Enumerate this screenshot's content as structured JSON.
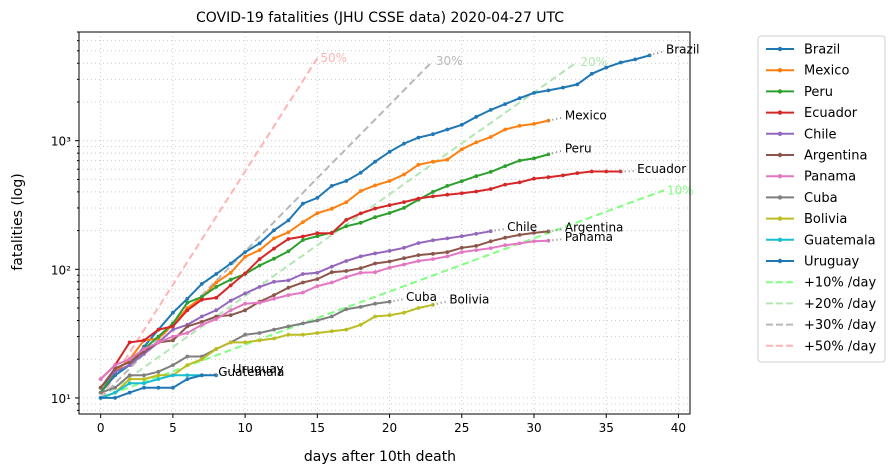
{
  "chart_data": {
    "type": "line",
    "title": "COVID-19 fatalities (JHU CSSE data) 2020-04-27 UTC",
    "xlabel": "days after 10th death",
    "ylabel": "fatalities (log)",
    "xlim": [
      -1.5,
      40.8
    ],
    "ylim": [
      7.5,
      7000
    ],
    "yscale": "log",
    "grid": true,
    "legend_position": "outside-right",
    "x_ticks": [
      0,
      5,
      10,
      15,
      20,
      25,
      30,
      35,
      40
    ],
    "x_tick_labels": [
      "0",
      "5",
      "10",
      "15",
      "20",
      "25",
      "30",
      "35",
      "40"
    ],
    "y_ticks": [
      10,
      100,
      1000
    ],
    "y_tick_labels": [
      "10¹",
      "10²",
      "10³"
    ],
    "series": [
      {
        "name": "Brazil",
        "color": "#1f77b4",
        "label": "Brazil",
        "x": [
          0,
          1,
          2,
          3,
          4,
          5,
          6,
          7,
          8,
          9,
          10,
          11,
          12,
          13,
          14,
          15,
          16,
          17,
          18,
          19,
          20,
          21,
          22,
          23,
          24,
          25,
          26,
          27,
          28,
          29,
          30,
          31,
          32,
          33,
          34,
          35,
          36,
          37,
          38
        ],
        "y": [
          11,
          15,
          18,
          25,
          34,
          46,
          59,
          77,
          92,
          111,
          136,
          159,
          201,
          240,
          324,
          359,
          445,
          486,
          564,
          686,
          819,
          950,
          1057,
          1124,
          1223,
          1328,
          1532,
          1736,
          1924,
          2141,
          2354,
          2462,
          2587,
          2741,
          3313,
          3704,
          4057,
          4286,
          4603
        ]
      },
      {
        "name": "Mexico",
        "color": "#ff7f0e",
        "label": "Mexico",
        "x": [
          0,
          1,
          2,
          3,
          4,
          5,
          6,
          7,
          8,
          9,
          10,
          11,
          12,
          13,
          14,
          15,
          16,
          17,
          18,
          19,
          20,
          21,
          22,
          23,
          24,
          25,
          26,
          27,
          28,
          29,
          30,
          31
        ],
        "y": [
          12,
          16,
          20,
          28,
          29,
          37,
          50,
          60,
          79,
          94,
          125,
          141,
          174,
          194,
          233,
          273,
          296,
          332,
          406,
          449,
          486,
          546,
          650,
          686,
          712,
          857,
          970,
          1069,
          1221,
          1305,
          1351,
          1434
        ]
      },
      {
        "name": "Peru",
        "color": "#2ca02c",
        "label": "Peru",
        "x": [
          0,
          1,
          2,
          3,
          4,
          5,
          6,
          7,
          8,
          9,
          10,
          11,
          12,
          13,
          14,
          15,
          16,
          17,
          18,
          19,
          20,
          21,
          22,
          23,
          24,
          25,
          26,
          27,
          28,
          29,
          30,
          31
        ],
        "y": [
          11,
          16,
          18,
          24,
          30,
          38,
          55,
          61,
          73,
          83,
          92,
          107,
          121,
          138,
          169,
          181,
          193,
          216,
          230,
          254,
          274,
          300,
          348,
          400,
          445,
          484,
          530,
          572,
          634,
          700,
          728,
          782
        ]
      },
      {
        "name": "Ecuador",
        "color": "#d62728",
        "label": "Ecuador",
        "x": [
          0,
          1,
          2,
          3,
          4,
          5,
          6,
          7,
          8,
          9,
          10,
          11,
          12,
          13,
          14,
          15,
          16,
          17,
          18,
          19,
          20,
          21,
          22,
          23,
          24,
          25,
          26,
          27,
          28,
          29,
          30,
          31,
          32,
          33,
          34,
          35,
          36
        ],
        "y": [
          14,
          18,
          27,
          28,
          34,
          36,
          48,
          58,
          60,
          75,
          93,
          120,
          145,
          172,
          180,
          191,
          191,
          242,
          272,
          297,
          315,
          333,
          355,
          369,
          380,
          390,
          403,
          421,
          456,
          474,
          507,
          520,
          537,
          560,
          576,
          576,
          576
        ]
      },
      {
        "name": "Chile",
        "color": "#9467bd",
        "label": "Chile",
        "x": [
          0,
          1,
          2,
          3,
          4,
          5,
          6,
          7,
          8,
          9,
          10,
          11,
          12,
          13,
          14,
          15,
          16,
          17,
          18,
          19,
          20,
          21,
          22,
          23,
          24,
          25,
          26,
          27
        ],
        "y": [
          12,
          16,
          18,
          22,
          27,
          34,
          37,
          43,
          48,
          57,
          65,
          73,
          80,
          82,
          92,
          94,
          105,
          116,
          126,
          133,
          139,
          147,
          160,
          168,
          174,
          181,
          189,
          198
        ]
      },
      {
        "name": "Argentina",
        "color": "#8c564b",
        "label": "Argentina",
        "x": [
          0,
          1,
          2,
          3,
          4,
          5,
          6,
          7,
          8,
          9,
          10,
          11,
          12,
          13,
          14,
          15,
          16,
          17,
          18,
          19,
          20,
          21,
          22,
          23,
          24,
          25,
          26,
          27,
          28,
          29,
          30,
          31
        ],
        "y": [
          12,
          17,
          19,
          23,
          27,
          28,
          36,
          39,
          43,
          44,
          48,
          56,
          63,
          72,
          79,
          84,
          95,
          97,
          102,
          111,
          115,
          122,
          129,
          132,
          136,
          147,
          152,
          165,
          176,
          185,
          192,
          197
        ]
      },
      {
        "name": "Panama",
        "color": "#e377c2",
        "label": "Panama",
        "x": [
          0,
          1,
          2,
          3,
          4,
          5,
          6,
          7,
          8,
          9,
          10,
          11,
          12,
          13,
          14,
          15,
          16,
          17,
          18,
          19,
          20,
          21,
          22,
          23,
          24,
          25,
          26,
          27,
          28,
          29,
          30,
          31
        ],
        "y": [
          14,
          18,
          20,
          24,
          27,
          30,
          32,
          37,
          41,
          48,
          54,
          55,
          59,
          63,
          66,
          74,
          79,
          87,
          94,
          95,
          103,
          109,
          116,
          120,
          126,
          136,
          141,
          146,
          154,
          159,
          165,
          167
        ]
      },
      {
        "name": "Cuba",
        "color": "#7f7f7f",
        "label": "Cuba",
        "x": [
          0,
          1,
          2,
          3,
          4,
          5,
          6,
          7,
          8,
          9,
          10,
          11,
          12,
          13,
          14,
          15,
          16,
          17,
          18,
          19,
          20
        ],
        "y": [
          11,
          12,
          15,
          15,
          16,
          18,
          21,
          21,
          24,
          27,
          31,
          32,
          34,
          36,
          38,
          40,
          43,
          49,
          51,
          54,
          56
        ]
      },
      {
        "name": "Bolivia",
        "color": "#bcbd22",
        "label": "Bolivia",
        "x": [
          0,
          1,
          2,
          3,
          4,
          5,
          6,
          7,
          8,
          9,
          10,
          11,
          12,
          13,
          14,
          15,
          16,
          17,
          18,
          19,
          20,
          21,
          22,
          23
        ],
        "y": [
          10,
          11,
          14,
          14,
          15,
          15,
          18,
          20,
          24,
          27,
          27,
          28,
          29,
          31,
          31,
          32,
          33,
          34,
          37,
          43,
          44,
          46,
          50,
          53
        ]
      },
      {
        "name": "Guatemala",
        "color": "#17becf",
        "label": "Guatemala",
        "x": [
          0,
          1,
          2,
          3,
          4,
          5,
          6,
          7
        ],
        "y": [
          10,
          11,
          13,
          13,
          14,
          15,
          15,
          15
        ]
      },
      {
        "name": "Uruguay",
        "color": "#1f77b4",
        "label": "Uruguay",
        "x": [
          0,
          1,
          2,
          3,
          4,
          5,
          6,
          7,
          8
        ],
        "y": [
          10,
          10,
          11,
          12,
          12,
          12,
          14,
          15,
          15
        ]
      }
    ],
    "reference_lines": [
      {
        "name": "+10% /day",
        "rate": 0.1,
        "x_end": 39,
        "color": "#80ff80",
        "label": "10%"
      },
      {
        "name": "+20% /day",
        "rate": 0.2,
        "x_end": 33,
        "color": "#b3e6b3",
        "label": "20%"
      },
      {
        "name": "+30% /day",
        "rate": 0.3,
        "x_end": 23,
        "color": "#b8b8b8",
        "label": "30%"
      },
      {
        "name": "+50% /day",
        "rate": 0.5,
        "x_end": 15,
        "color": "#ffb3b3",
        "label": "50%"
      }
    ]
  }
}
